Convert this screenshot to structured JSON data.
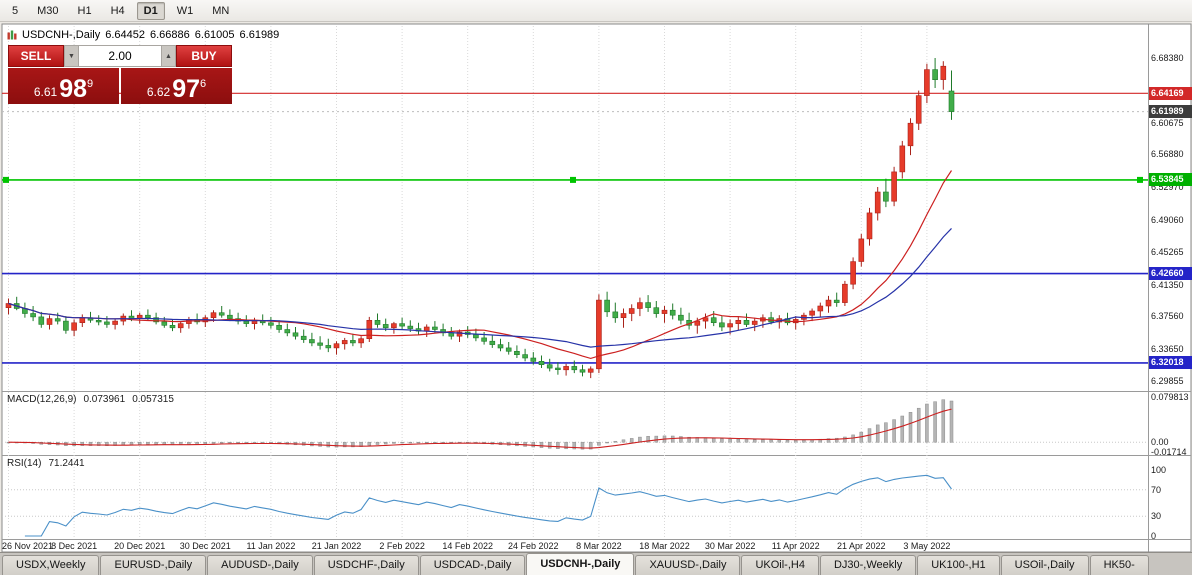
{
  "toolbar": {
    "timeframes": [
      {
        "label": "5",
        "active": false
      },
      {
        "label": "M30",
        "active": false
      },
      {
        "label": "H1",
        "active": false
      },
      {
        "label": "H4",
        "active": false
      },
      {
        "label": "D1",
        "active": true
      },
      {
        "label": "W1",
        "active": false
      },
      {
        "label": "MN",
        "active": false
      }
    ]
  },
  "chart_header": {
    "symbol": "USDCNH-,Daily",
    "open": "6.64452",
    "high": "6.66886",
    "low": "6.61005",
    "close": "6.61989"
  },
  "icons": {
    "volume_down": "▼",
    "volume_up": "▲"
  },
  "trade_panel": {
    "sell_label": "SELL",
    "buy_label": "BUY",
    "volume": "2.00",
    "sell_price": {
      "prefix": "6.61",
      "big": "98",
      "pip": "9"
    },
    "buy_price": {
      "prefix": "6.62",
      "big": "97",
      "pip": "6"
    }
  },
  "price_axis": {
    "labels": [
      {
        "text": "6.68380",
        "value": 6.6838
      },
      {
        "text": "6.60675",
        "value": 6.60675
      },
      {
        "text": "6.56880",
        "value": 6.5688
      },
      {
        "text": "6.52970",
        "value": 6.5297
      },
      {
        "text": "6.49060",
        "value": 6.4906
      },
      {
        "text": "6.45265",
        "value": 6.45265
      },
      {
        "text": "6.41350",
        "value": 6.4135
      },
      {
        "text": "6.37560",
        "value": 6.3756
      },
      {
        "text": "6.33650",
        "value": 6.3365
      },
      {
        "text": "6.29855",
        "value": 6.29855
      }
    ],
    "tags": [
      {
        "text": "6.64169",
        "value": 6.64169,
        "color": "#d22828"
      },
      {
        "text": "6.61989",
        "value": 6.61989,
        "color": "#3c3c3c"
      },
      {
        "text": "6.53845",
        "value": 6.53845,
        "color": "#00b000"
      },
      {
        "text": "6.42660",
        "value": 6.4266,
        "color": "#2424c8"
      },
      {
        "text": "6.32018",
        "value": 6.32018,
        "color": "#2424c8"
      }
    ]
  },
  "hlines": [
    {
      "value": 6.61989,
      "color": "#bdbdbd",
      "width": 1,
      "dotted": true
    },
    {
      "value": 6.64169,
      "color": "#d22828",
      "width": 1.2
    },
    {
      "value": 6.53845,
      "color": "#00c400",
      "width": 1.6,
      "selected": true
    },
    {
      "value": 6.4266,
      "color": "#2424c8",
      "width": 1.6
    },
    {
      "value": 6.32018,
      "color": "#2424c8",
      "width": 1.6
    }
  ],
  "macd_panel": {
    "label": "MACD(12,26,9)",
    "value1": "0.073961",
    "value2": "0.057315",
    "axis": [
      {
        "text": "0.079813",
        "value": 0.079813
      },
      {
        "text": "0.00",
        "value": 0
      },
      {
        "text": "-0.01714",
        "value": -0.01714
      }
    ]
  },
  "rsi_panel": {
    "label": "RSI(14)",
    "value": "71.2441",
    "levels": [
      70,
      30
    ],
    "axis": [
      {
        "text": "100",
        "value": 100
      },
      {
        "text": "70",
        "value": 70
      },
      {
        "text": "30",
        "value": 30
      },
      {
        "text": "0",
        "value": 0
      }
    ]
  },
  "chart_data": {
    "type": "candlestick",
    "symbol": "USDCNH",
    "timeframe": "Daily",
    "up_fill": "#e63b2a",
    "up_stroke": "#a8221a",
    "down_fill": "#41ad49",
    "down_stroke": "#1f7a2a",
    "price_range": {
      "min": 6.2878,
      "max": 6.722
    },
    "x_labels": [
      {
        "text": "26 Nov 2021",
        "i": 0
      },
      {
        "text": "8 Dec 2021",
        "i": 8
      },
      {
        "text": "20 Dec 2021",
        "i": 16
      },
      {
        "text": "30 Dec 2021",
        "i": 24
      },
      {
        "text": "11 Jan 2022",
        "i": 32
      },
      {
        "text": "21 Jan 2022",
        "i": 40
      },
      {
        "text": "2 Feb 2022",
        "i": 48
      },
      {
        "text": "14 Feb 2022",
        "i": 56
      },
      {
        "text": "24 Feb 2022",
        "i": 64
      },
      {
        "text": "8 Mar 2022",
        "i": 72
      },
      {
        "text": "18 Mar 2022",
        "i": 80
      },
      {
        "text": "30 Mar 2022",
        "i": 88
      },
      {
        "text": "11 Apr 2022",
        "i": 96
      },
      {
        "text": "21 Apr 2022",
        "i": 104
      },
      {
        "text": "3 May 2022",
        "i": 112
      }
    ],
    "overlays": [
      {
        "name": "ma-fast-line",
        "period": 15,
        "color": "#cc2020"
      },
      {
        "name": "ma-slow-line",
        "period": 25,
        "color": "#2733a8"
      }
    ],
    "macd": {
      "fast": 12,
      "slow": 26,
      "signal": 9,
      "range": {
        "min": -0.019,
        "max": 0.0815
      },
      "histogram_color": "#b5b5b5",
      "signal_color": "#cc2020"
    },
    "rsi": {
      "period": 14,
      "color": "#4a90c8"
    },
    "candles": [
      [
        6.386,
        6.397,
        6.378,
        6.391
      ],
      [
        6.391,
        6.399,
        6.383,
        6.385
      ],
      [
        6.385,
        6.392,
        6.374,
        6.379
      ],
      [
        6.379,
        6.388,
        6.37,
        6.375
      ],
      [
        6.375,
        6.381,
        6.362,
        6.366
      ],
      [
        6.366,
        6.377,
        6.36,
        6.373
      ],
      [
        6.373,
        6.38,
        6.366,
        6.37
      ],
      [
        6.37,
        6.376,
        6.355,
        6.359
      ],
      [
        6.359,
        6.372,
        6.352,
        6.368
      ],
      [
        6.368,
        6.378,
        6.363,
        6.374
      ],
      [
        6.374,
        6.381,
        6.368,
        6.371
      ],
      [
        6.371,
        6.377,
        6.365,
        6.369
      ],
      [
        6.369,
        6.376,
        6.362,
        6.366
      ],
      [
        6.366,
        6.373,
        6.36,
        6.37
      ],
      [
        6.37,
        6.379,
        6.365,
        6.376
      ],
      [
        6.376,
        6.383,
        6.37,
        6.373
      ],
      [
        6.373,
        6.38,
        6.367,
        6.377
      ],
      [
        6.377,
        6.384,
        6.371,
        6.374
      ],
      [
        6.374,
        6.38,
        6.366,
        6.369
      ],
      [
        6.369,
        6.375,
        6.362,
        6.365
      ],
      [
        6.365,
        6.372,
        6.358,
        6.362
      ],
      [
        6.362,
        6.37,
        6.356,
        6.367
      ],
      [
        6.367,
        6.375,
        6.361,
        6.372
      ],
      [
        6.372,
        6.379,
        6.366,
        6.369
      ],
      [
        6.369,
        6.377,
        6.363,
        6.374
      ],
      [
        6.374,
        6.383,
        6.369,
        6.38
      ],
      [
        6.38,
        6.388,
        6.374,
        6.377
      ],
      [
        6.377,
        6.384,
        6.37,
        6.373
      ],
      [
        6.373,
        6.38,
        6.366,
        6.37
      ],
      [
        6.37,
        6.377,
        6.363,
        6.367
      ],
      [
        6.367,
        6.374,
        6.36,
        6.371
      ],
      [
        6.371,
        6.378,
        6.365,
        6.368
      ],
      [
        6.368,
        6.375,
        6.361,
        6.365
      ],
      [
        6.365,
        6.371,
        6.356,
        6.36
      ],
      [
        6.36,
        6.367,
        6.352,
        6.356
      ],
      [
        6.356,
        6.363,
        6.348,
        6.352
      ],
      [
        6.352,
        6.36,
        6.344,
        6.348
      ],
      [
        6.348,
        6.356,
        6.34,
        6.344
      ],
      [
        6.344,
        6.352,
        6.336,
        6.341
      ],
      [
        6.341,
        6.349,
        6.333,
        6.338
      ],
      [
        6.338,
        6.346,
        6.33,
        6.343
      ],
      [
        6.343,
        6.35,
        6.336,
        6.347
      ],
      [
        6.347,
        6.355,
        6.34,
        6.344
      ],
      [
        6.344,
        6.352,
        6.338,
        6.349
      ],
      [
        6.349,
        6.375,
        6.345,
        6.371
      ],
      [
        6.371,
        6.379,
        6.362,
        6.366
      ],
      [
        6.366,
        6.373,
        6.358,
        6.362
      ],
      [
        6.362,
        6.369,
        6.355,
        6.367
      ],
      [
        6.367,
        6.374,
        6.36,
        6.364
      ],
      [
        6.364,
        6.371,
        6.357,
        6.361
      ],
      [
        6.361,
        6.368,
        6.354,
        6.358
      ],
      [
        6.358,
        6.366,
        6.351,
        6.363
      ],
      [
        6.363,
        6.37,
        6.356,
        6.36
      ],
      [
        6.36,
        6.367,
        6.352,
        6.356
      ],
      [
        6.356,
        6.363,
        6.348,
        6.352
      ],
      [
        6.352,
        6.36,
        6.345,
        6.357
      ],
      [
        6.357,
        6.364,
        6.35,
        6.354
      ],
      [
        6.354,
        6.361,
        6.346,
        6.35
      ],
      [
        6.35,
        6.357,
        6.342,
        6.346
      ],
      [
        6.346,
        6.353,
        6.338,
        6.342
      ],
      [
        6.342,
        6.349,
        6.334,
        6.338
      ],
      [
        6.338,
        6.345,
        6.33,
        6.334
      ],
      [
        6.334,
        6.341,
        6.326,
        6.33
      ],
      [
        6.33,
        6.337,
        6.322,
        6.326
      ],
      [
        6.326,
        6.333,
        6.318,
        6.322
      ],
      [
        6.322,
        6.329,
        6.314,
        6.318
      ],
      [
        6.318,
        6.325,
        6.31,
        6.314
      ],
      [
        6.314,
        6.321,
        6.306,
        6.312
      ],
      [
        6.312,
        6.319,
        6.305,
        6.316
      ],
      [
        6.316,
        6.323,
        6.308,
        6.312
      ],
      [
        6.312,
        6.318,
        6.304,
        6.309
      ],
      [
        6.309,
        6.316,
        6.302,
        6.313
      ],
      [
        6.313,
        6.402,
        6.308,
        6.395
      ],
      [
        6.395,
        6.405,
        6.375,
        6.381
      ],
      [
        6.381,
        6.392,
        6.368,
        6.374
      ],
      [
        6.374,
        6.385,
        6.362,
        6.379
      ],
      [
        6.379,
        6.39,
        6.37,
        6.385
      ],
      [
        6.385,
        6.398,
        6.376,
        6.392
      ],
      [
        6.392,
        6.401,
        6.381,
        6.386
      ],
      [
        6.386,
        6.394,
        6.374,
        6.379
      ],
      [
        6.379,
        6.388,
        6.368,
        6.383
      ],
      [
        6.383,
        6.391,
        6.372,
        6.377
      ],
      [
        6.377,
        6.386,
        6.366,
        6.371
      ],
      [
        6.371,
        6.38,
        6.36,
        6.365
      ],
      [
        6.365,
        6.374,
        6.355,
        6.37
      ],
      [
        6.37,
        6.379,
        6.361,
        6.374
      ],
      [
        6.374,
        6.382,
        6.364,
        6.368
      ],
      [
        6.368,
        6.376,
        6.358,
        6.363
      ],
      [
        6.363,
        6.372,
        6.354,
        6.367
      ],
      [
        6.367,
        6.375,
        6.359,
        6.371
      ],
      [
        6.371,
        6.379,
        6.363,
        6.366
      ],
      [
        6.366,
        6.374,
        6.358,
        6.37
      ],
      [
        6.37,
        6.378,
        6.362,
        6.374
      ],
      [
        6.374,
        6.381,
        6.366,
        6.369
      ],
      [
        6.369,
        6.377,
        6.361,
        6.373
      ],
      [
        6.373,
        6.38,
        6.365,
        6.368
      ],
      [
        6.368,
        6.376,
        6.36,
        6.372
      ],
      [
        6.372,
        6.38,
        6.365,
        6.377
      ],
      [
        6.377,
        6.385,
        6.37,
        6.382
      ],
      [
        6.382,
        6.392,
        6.375,
        6.388
      ],
      [
        6.388,
        6.4,
        6.38,
        6.395
      ],
      [
        6.395,
        6.404,
        6.387,
        6.392
      ],
      [
        6.392,
        6.418,
        6.388,
        6.414
      ],
      [
        6.414,
        6.446,
        6.408,
        6.441
      ],
      [
        6.441,
        6.474,
        6.435,
        6.468
      ],
      [
        6.468,
        6.505,
        6.46,
        6.499
      ],
      [
        6.499,
        6.53,
        6.49,
        6.524
      ],
      [
        6.524,
        6.54,
        6.506,
        6.513
      ],
      [
        6.513,
        6.554,
        6.507,
        6.548
      ],
      [
        6.548,
        6.585,
        6.54,
        6.579
      ],
      [
        6.579,
        6.612,
        6.568,
        6.606
      ],
      [
        6.606,
        6.645,
        6.598,
        6.639
      ],
      [
        6.639,
        6.677,
        6.63,
        6.67
      ],
      [
        6.67,
        6.6838,
        6.648,
        6.658
      ],
      [
        6.658,
        6.68,
        6.646,
        6.674
      ],
      [
        6.64452,
        6.66886,
        6.61005,
        6.61989
      ]
    ]
  },
  "tabs": [
    {
      "label": "USDX,Weekly",
      "active": false
    },
    {
      "label": "EURUSD-,Daily",
      "active": false
    },
    {
      "label": "AUDUSD-,Daily",
      "active": false
    },
    {
      "label": "USDCHF-,Daily",
      "active": false
    },
    {
      "label": "USDCAD-,Daily",
      "active": false
    },
    {
      "label": "USDCNH-,Daily",
      "active": true
    },
    {
      "label": "XAUUSD-,Daily",
      "active": false
    },
    {
      "label": "UKOil-,H4",
      "active": false
    },
    {
      "label": "DJ30-,Weekly",
      "active": false
    },
    {
      "label": "UK100-,H1",
      "active": false
    },
    {
      "label": "USOil-,Daily",
      "active": false
    },
    {
      "label": "HK50-",
      "active": false
    }
  ]
}
